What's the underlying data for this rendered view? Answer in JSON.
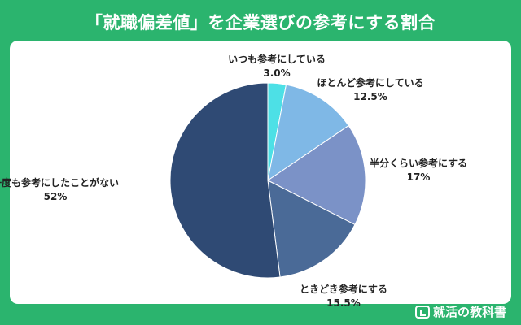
{
  "chart_data": {
    "type": "pie",
    "title": "「就職偏差値」を企業選びの参考にする割合",
    "slices": [
      {
        "label": "いつも参考にしている",
        "value": 3.0,
        "display": "3.0%",
        "color": "#4de0e6"
      },
      {
        "label": "ほとんど参考にしている",
        "value": 12.5,
        "display": "12.5%",
        "color": "#7fb8e6"
      },
      {
        "label": "半分くらい参考にする",
        "value": 17,
        "display": "17%",
        "color": "#7b92c7"
      },
      {
        "label": "ときどき参考にする",
        "value": 15.5,
        "display": "15.5%",
        "color": "#4a6a97"
      },
      {
        "label": "一度も参考にしたことがない",
        "value": 52,
        "display": "52%",
        "color": "#2f4a74"
      }
    ]
  },
  "brand": {
    "name": "就活の教科書"
  }
}
